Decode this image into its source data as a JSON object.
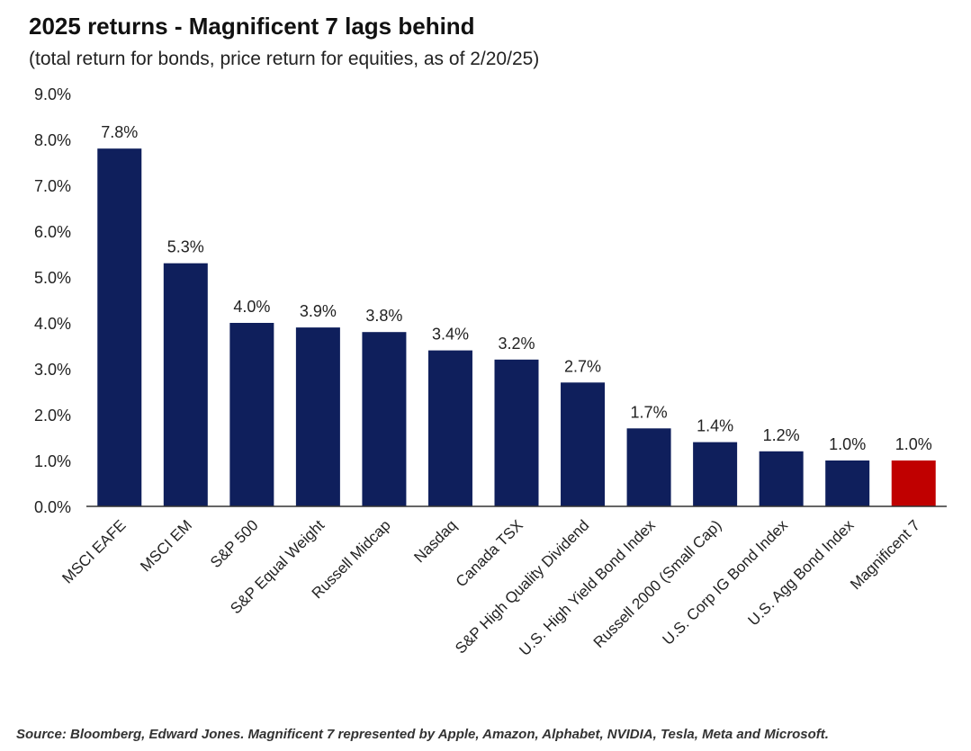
{
  "title": "2025 returns - Magnificent 7 lags behind",
  "subtitle": "(total return for bonds, price return for equities, as of 2/20/25)",
  "source": "Source: Bloomberg, Edward Jones. Magnificent 7 represented by Apple, Amazon, Alphabet, NVIDIA, Tesla, Meta and Microsoft.",
  "colors": {
    "bar": "#0f1f5c",
    "highlight": "#c00000",
    "axis": "#333333"
  },
  "chart_data": {
    "type": "bar",
    "title": "2025 returns - Magnificent 7 lags behind",
    "subtitle": "(total return for bonds, price return for equities, as of 2/20/25)",
    "xlabel": "",
    "ylabel": "",
    "ylim": [
      0,
      9
    ],
    "yticks": [
      "0.0%",
      "1.0%",
      "2.0%",
      "3.0%",
      "4.0%",
      "5.0%",
      "6.0%",
      "7.0%",
      "8.0%",
      "9.0%"
    ],
    "grid": false,
    "categories": [
      "MSCI EAFE",
      "MSCI EM",
      "S&P 500",
      "S&P Equal Weight",
      "Russell Midcap",
      "Nasdaq",
      "Canada TSX",
      "S&P High Quality Dividend",
      "U.S. High Yield Bond Index",
      "Russell 2000 (Small Cap)",
      "U.S. Corp IG Bond Index",
      "U.S. Agg Bond Index",
      "Magnificent 7"
    ],
    "values": [
      7.8,
      5.3,
      4.0,
      3.9,
      3.8,
      3.4,
      3.2,
      2.7,
      1.7,
      1.4,
      1.2,
      1.0,
      1.0
    ],
    "value_labels": [
      "7.8%",
      "5.3%",
      "4.0%",
      "3.9%",
      "3.8%",
      "3.4%",
      "3.2%",
      "2.7%",
      "1.7%",
      "1.4%",
      "1.2%",
      "1.0%",
      "1.0%"
    ],
    "highlight": "Magnificent 7"
  }
}
